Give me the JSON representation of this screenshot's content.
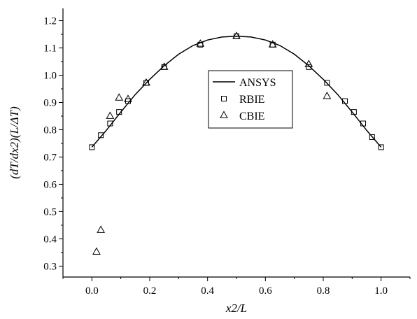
{
  "chart_data": {
    "type": "scatter",
    "xlabel": "x2/L",
    "ylabel": "(dT/dx2)(L/ΔT)",
    "xlim": [
      -0.1,
      1.1
    ],
    "ylim": [
      0.26,
      1.245
    ],
    "xticks": [
      0.0,
      0.2,
      0.4,
      0.6,
      0.8,
      1.0
    ],
    "yticks": [
      0.3,
      0.4,
      0.5,
      0.6,
      0.7,
      0.8,
      0.9,
      1.0,
      1.1,
      1.2
    ],
    "xtick_labels": [
      "0.0",
      "0.2",
      "0.4",
      "0.6",
      "0.8",
      "1.0"
    ],
    "ytick_labels": [
      "0.3",
      "0.4",
      "0.5",
      "0.6",
      "0.7",
      "0.8",
      "0.9",
      "1.0",
      "1.1",
      "1.2"
    ],
    "grid": false,
    "legend_position": "center",
    "series": [
      {
        "name": "ANSYS",
        "style": "line",
        "color": "#000000",
        "x": [
          0.0,
          0.05,
          0.1,
          0.15,
          0.2,
          0.25,
          0.3,
          0.35,
          0.4,
          0.45,
          0.5,
          0.55,
          0.6,
          0.65,
          0.7,
          0.75,
          0.8,
          0.85,
          0.9,
          0.95,
          1.0
        ],
        "y": [
          0.736,
          0.798,
          0.865,
          0.929,
          0.985,
          1.035,
          1.077,
          1.109,
          1.129,
          1.14,
          1.143,
          1.14,
          1.129,
          1.109,
          1.077,
          1.035,
          0.985,
          0.929,
          0.865,
          0.798,
          0.736
        ]
      },
      {
        "name": "RBIE",
        "style": "square",
        "color": "#000000",
        "x": [
          0.0,
          0.031,
          0.063,
          0.094,
          0.125,
          0.188,
          0.25,
          0.375,
          0.5,
          0.625,
          0.75,
          0.813,
          0.875,
          0.906,
          0.938,
          0.969,
          1.0
        ],
        "y": [
          0.736,
          0.78,
          0.823,
          0.865,
          0.905,
          0.972,
          1.03,
          1.112,
          1.143,
          1.112,
          1.03,
          0.972,
          0.905,
          0.865,
          0.823,
          0.773,
          0.736
        ]
      },
      {
        "name": "CBIE",
        "style": "triangle",
        "color": "#000000",
        "x": [
          0.016,
          0.031,
          0.063,
          0.094,
          0.125,
          0.188,
          0.25,
          0.375,
          0.5,
          0.625,
          0.75,
          0.813
        ],
        "y": [
          0.352,
          0.432,
          0.85,
          0.917,
          0.912,
          0.972,
          1.03,
          1.115,
          1.143,
          1.112,
          1.04,
          0.923
        ]
      }
    ]
  }
}
